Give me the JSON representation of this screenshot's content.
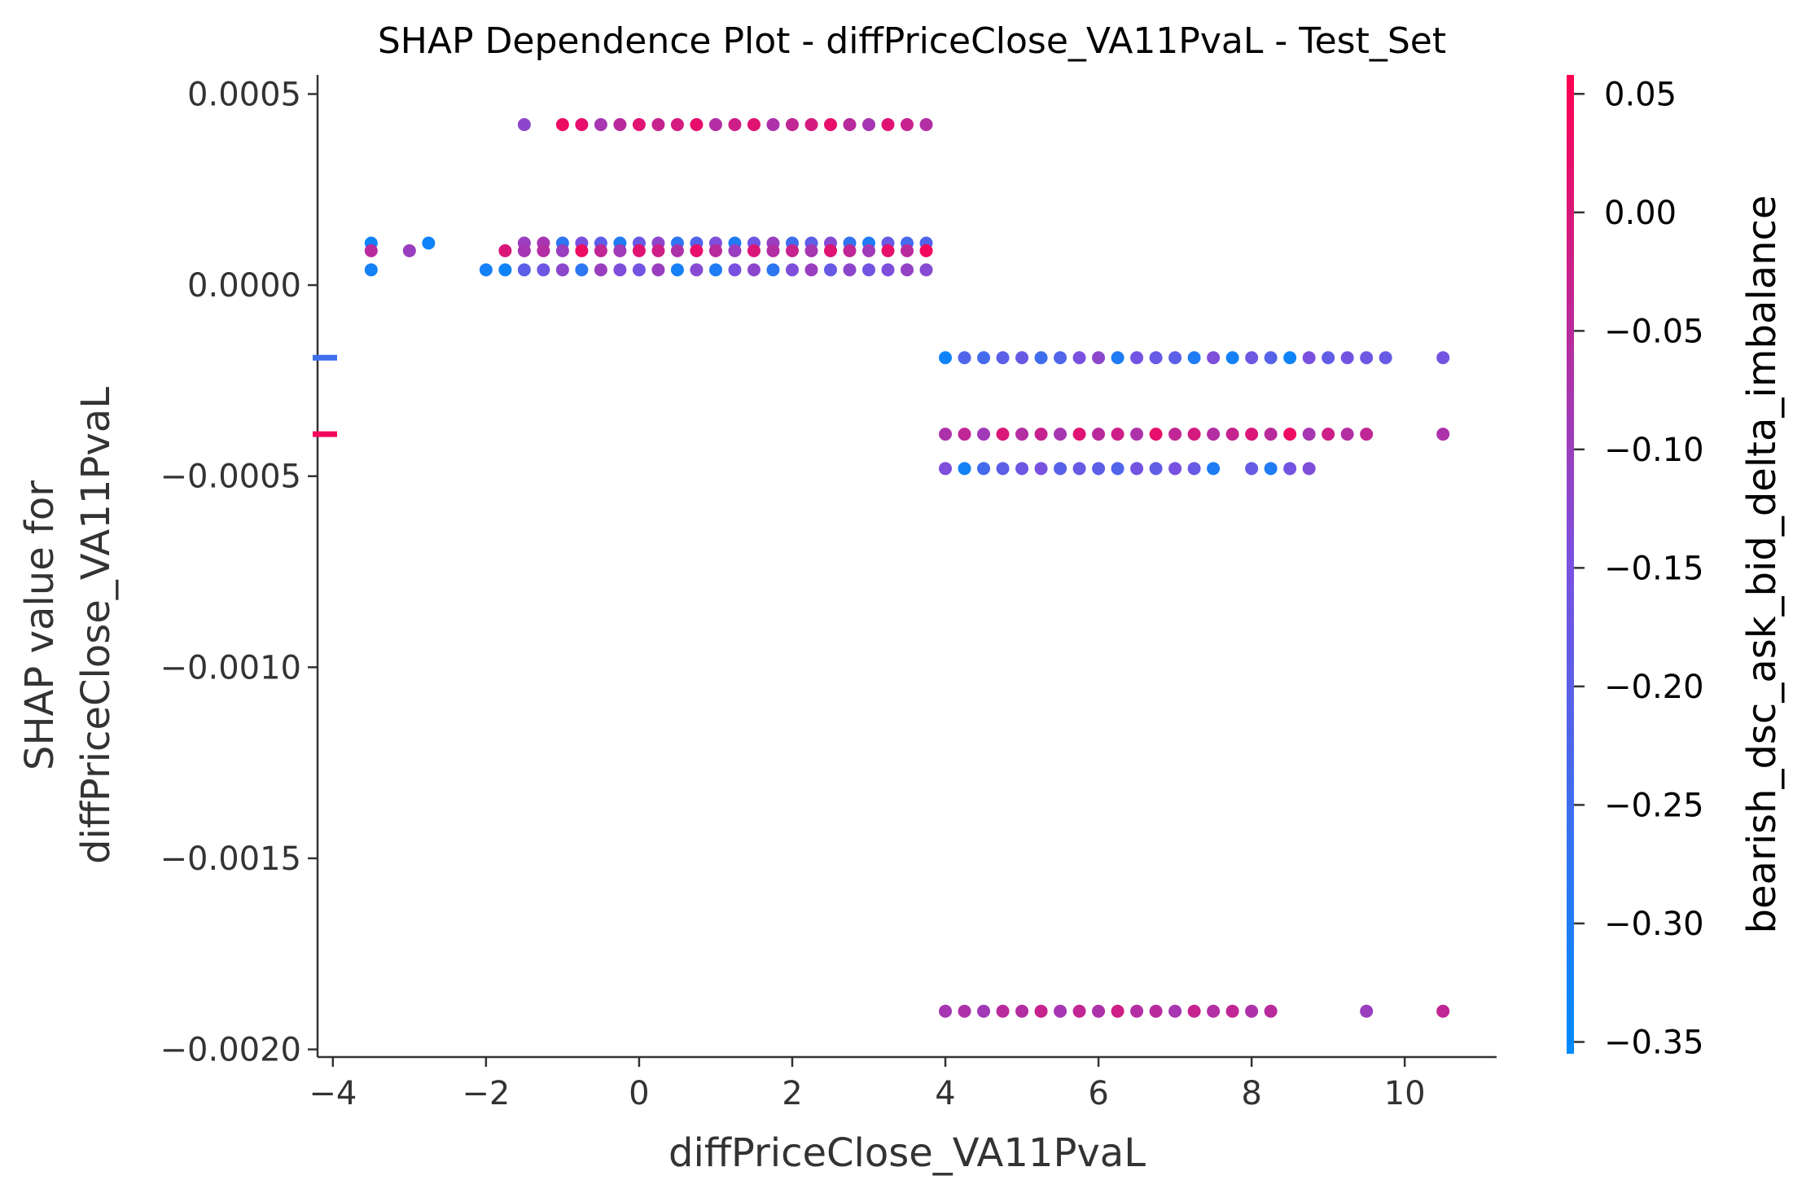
{
  "chart_data": {
    "type": "scatter",
    "title": "SHAP Dependence Plot - diffPriceClose_VA11PvaL - Test_Set",
    "xlabel": "diffPriceClose_VA11PvaL",
    "ylabel_lines": [
      "SHAP value for",
      "diffPriceClose_VA11PvaL"
    ],
    "xlim": [
      -4.2,
      11.2
    ],
    "ylim": [
      -0.00202,
      0.00055
    ],
    "x_ticks": [
      -4,
      -2,
      0,
      2,
      4,
      6,
      8,
      10
    ],
    "x_tick_labels": [
      "−4",
      "−2",
      "0",
      "2",
      "4",
      "6",
      "8",
      "10"
    ],
    "y_ticks": [
      0.0005,
      0.0,
      -0.0005,
      -0.001,
      -0.0015,
      -0.002
    ],
    "y_tick_labels": [
      "0.0005",
      "0.0000",
      "−0.0005",
      "−0.0010",
      "−0.0015",
      "−0.0020"
    ],
    "grid": false,
    "colorbar": {
      "label": "bearish_dsc_ask_bid_delta_imbalance",
      "range": [
        -0.355,
        0.058
      ],
      "ticks": [
        0.05,
        0.0,
        -0.05,
        -0.1,
        -0.15,
        -0.2,
        -0.25,
        -0.3,
        -0.35
      ],
      "tick_labels": [
        "0.05",
        "0.00",
        "−0.05",
        "−0.10",
        "−0.15",
        "−0.20",
        "−0.25",
        "−0.30",
        "−0.35"
      ],
      "colors": [
        "#008bfb",
        "#7a51e0",
        "#ff0051"
      ]
    },
    "missing_markers": [
      {
        "y": -0.00019,
        "c": -0.25
      },
      {
        "y": -0.00039,
        "c": 0.04
      }
    ],
    "groups": [
      {
        "y": 0.00042,
        "x_start": -1.0,
        "x_end": 3.75,
        "step": 0.25,
        "colors": [
          0.03,
          0.02,
          -0.08,
          -0.05,
          0.01,
          -0.03,
          -0.01,
          0.02,
          -0.06,
          -0.02,
          0.01,
          -0.07,
          -0.04,
          -0.01,
          0.02,
          -0.05,
          -0.08,
          0.01,
          -0.03,
          -0.06
        ]
      },
      {
        "y": 0.00042,
        "x": [
          -1.5
        ],
        "colors": [
          -0.12
        ]
      },
      {
        "y": 0.00011,
        "x": [
          -3.5,
          -2.75
        ],
        "colors": [
          -0.33,
          -0.33
        ]
      },
      {
        "y": 0.00011,
        "x_start": -1.5,
        "x_end": 3.75,
        "step": 0.25,
        "colors": [
          -0.1,
          -0.08,
          -0.28,
          -0.15,
          -0.2,
          -0.3,
          -0.18,
          -0.12,
          -0.28,
          -0.22,
          -0.14,
          -0.3,
          -0.17,
          -0.1,
          -0.25,
          -0.2,
          -0.13,
          -0.27,
          -0.3,
          -0.18,
          -0.24,
          -0.22
        ]
      },
      {
        "y": 9e-05,
        "x": [
          -3.5,
          -3.0
        ],
        "colors": [
          -0.05,
          -0.1
        ]
      },
      {
        "y": 9e-05,
        "x_start": -1.75,
        "x_end": 3.75,
        "step": 0.25,
        "colors": [
          0.0,
          -0.08,
          -0.06,
          -0.1,
          0.03,
          -0.04,
          -0.09,
          0.01,
          -0.02,
          -0.07,
          0.02,
          -0.05,
          -0.1,
          0.0,
          -0.06,
          -0.03,
          -0.08,
          0.01,
          -0.04,
          -0.09,
          0.02,
          -0.05,
          0.04
        ]
      },
      {
        "y": 4e-05,
        "x": [
          -3.5
        ],
        "colors": [
          -0.32
        ]
      },
      {
        "y": 4e-05,
        "x_start": -2.0,
        "x_end": 3.75,
        "step": 0.25,
        "colors": [
          -0.32,
          -0.33,
          -0.2,
          -0.17,
          -0.12,
          -0.28,
          -0.1,
          -0.14,
          -0.16,
          -0.1,
          -0.32,
          -0.13,
          -0.3,
          -0.15,
          -0.12,
          -0.28,
          -0.14,
          -0.1,
          -0.18,
          -0.12,
          -0.16,
          -0.14,
          -0.11,
          -0.13
        ]
      },
      {
        "y": -0.00019,
        "x_start": 4.0,
        "x_end": 9.75,
        "step": 0.25,
        "colors": [
          -0.33,
          -0.22,
          -0.24,
          -0.2,
          -0.18,
          -0.25,
          -0.22,
          -0.15,
          -0.12,
          -0.3,
          -0.16,
          -0.18,
          -0.2,
          -0.3,
          -0.14,
          -0.32,
          -0.17,
          -0.21,
          -0.33,
          -0.15,
          -0.19,
          -0.16,
          -0.17,
          -0.18
        ]
      },
      {
        "y": -0.00019,
        "x": [
          10.5
        ],
        "colors": [
          -0.16
        ]
      },
      {
        "y": -0.00039,
        "x_start": 4.0,
        "x_end": 9.5,
        "step": 0.25,
        "colors": [
          -0.07,
          -0.04,
          -0.09,
          0.0,
          -0.06,
          -0.03,
          -0.08,
          0.01,
          -0.05,
          -0.02,
          -0.07,
          0.02,
          -0.04,
          -0.01,
          -0.06,
          -0.03,
          0.0,
          -0.05,
          0.03,
          -0.08,
          -0.02,
          -0.06,
          -0.04
        ]
      },
      {
        "y": -0.00039,
        "x": [
          10.5
        ],
        "colors": [
          -0.07
        ]
      },
      {
        "y": -0.00048,
        "x_start": 4.0,
        "x_end": 7.5,
        "step": 0.25,
        "colors": [
          -0.14,
          -0.32,
          -0.24,
          -0.2,
          -0.17,
          -0.15,
          -0.21,
          -0.18,
          -0.2,
          -0.22,
          -0.16,
          -0.19,
          -0.15,
          -0.18,
          -0.3
        ]
      },
      {
        "y": -0.00048,
        "x": [
          8.0,
          8.25,
          8.5,
          8.75
        ],
        "colors": [
          -0.18,
          -0.3,
          -0.16,
          -0.14
        ]
      },
      {
        "y": -0.0019,
        "x_start": 4.0,
        "x_end": 8.25,
        "step": 0.25,
        "colors": [
          -0.08,
          -0.07,
          -0.09,
          -0.05,
          -0.06,
          -0.03,
          -0.08,
          -0.04,
          -0.07,
          -0.02,
          -0.06,
          -0.05,
          -0.08,
          -0.03,
          -0.06,
          -0.04,
          -0.07,
          -0.05
        ]
      },
      {
        "y": -0.0019,
        "x": [
          9.5,
          10.5
        ],
        "colors": [
          -0.1,
          -0.04
        ]
      }
    ]
  }
}
